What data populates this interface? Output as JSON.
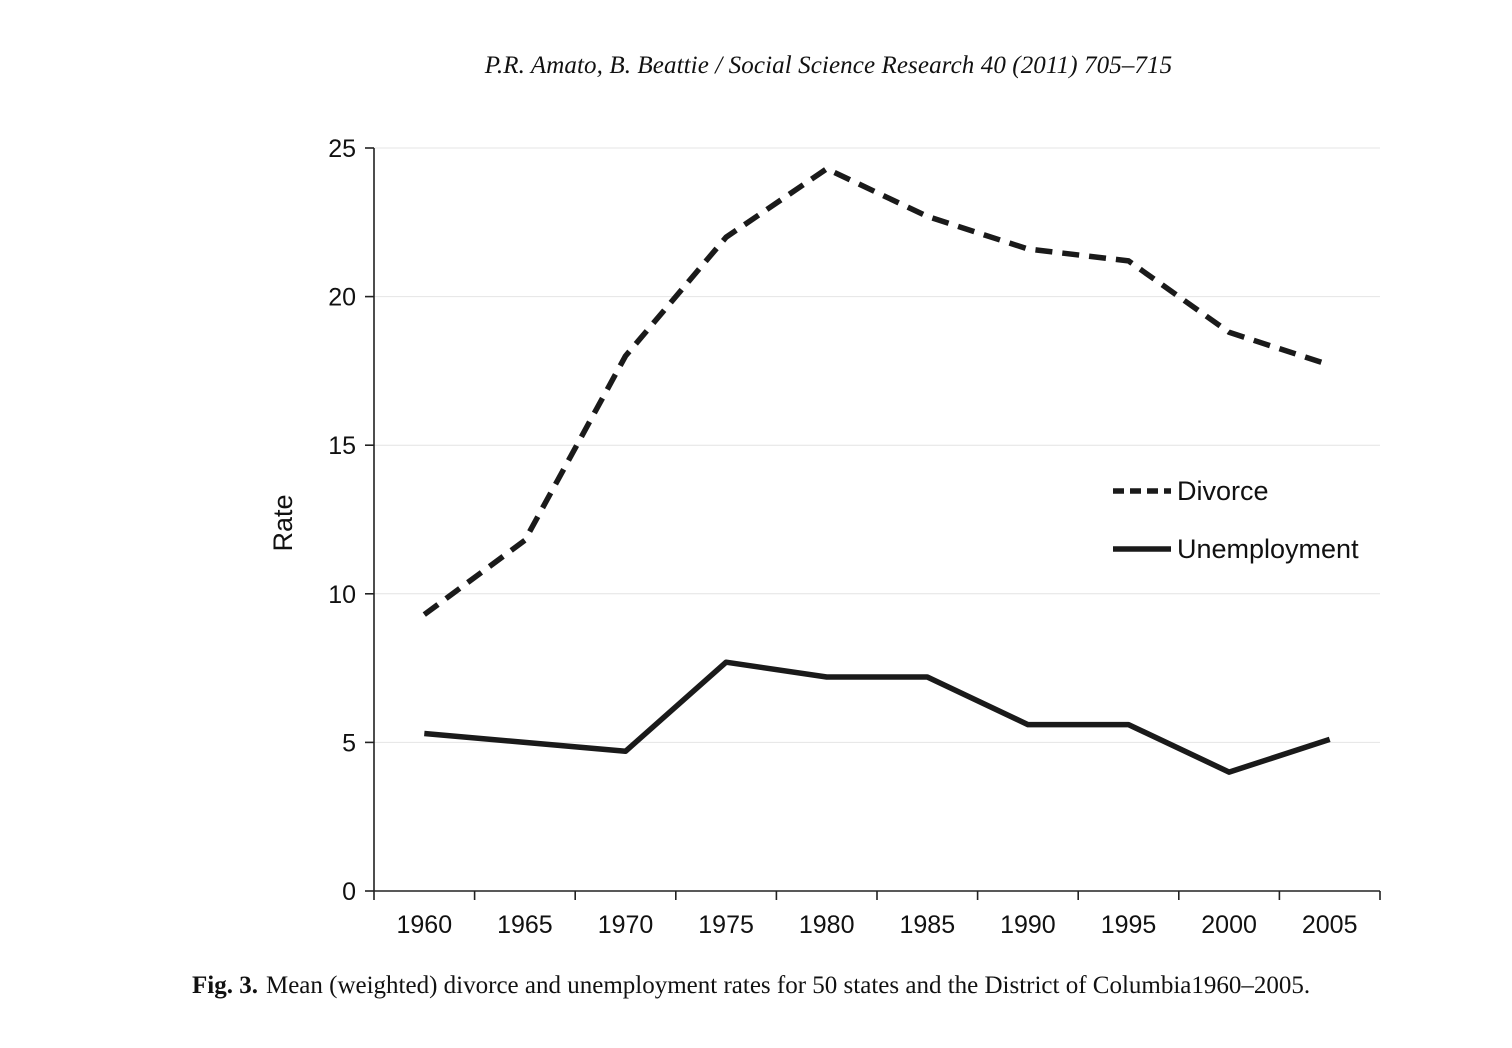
{
  "page": {
    "running_header": "P.R. Amato, B. Beattie / Social Science Research 40 (2011) 705–715"
  },
  "caption": {
    "label": "Fig. 3.",
    "text": "Mean (weighted) divorce and unemployment rates for 50 states and the District of Columbia1960–2005."
  },
  "chart_data": {
    "type": "line",
    "title": "",
    "xlabel": "",
    "ylabel": "Rate",
    "ylim": [
      0,
      25
    ],
    "yticks": [
      0,
      5,
      10,
      15,
      20,
      25
    ],
    "categories": [
      "1960",
      "1965",
      "1970",
      "1975",
      "1980",
      "1985",
      "1990",
      "1995",
      "2000",
      "2005"
    ],
    "grid": true,
    "legend_position": "right",
    "series": [
      {
        "name": "Divorce",
        "style": "dashed",
        "color": "#1a1a1a",
        "values": [
          9.3,
          11.8,
          18.0,
          22.0,
          24.3,
          22.7,
          21.6,
          21.2,
          18.8,
          17.7
        ]
      },
      {
        "name": "Unemployment",
        "style": "solid",
        "color": "#1a1a1a",
        "values": [
          5.3,
          5.0,
          4.7,
          7.7,
          7.2,
          7.2,
          5.6,
          5.6,
          4.0,
          5.1
        ]
      }
    ]
  }
}
